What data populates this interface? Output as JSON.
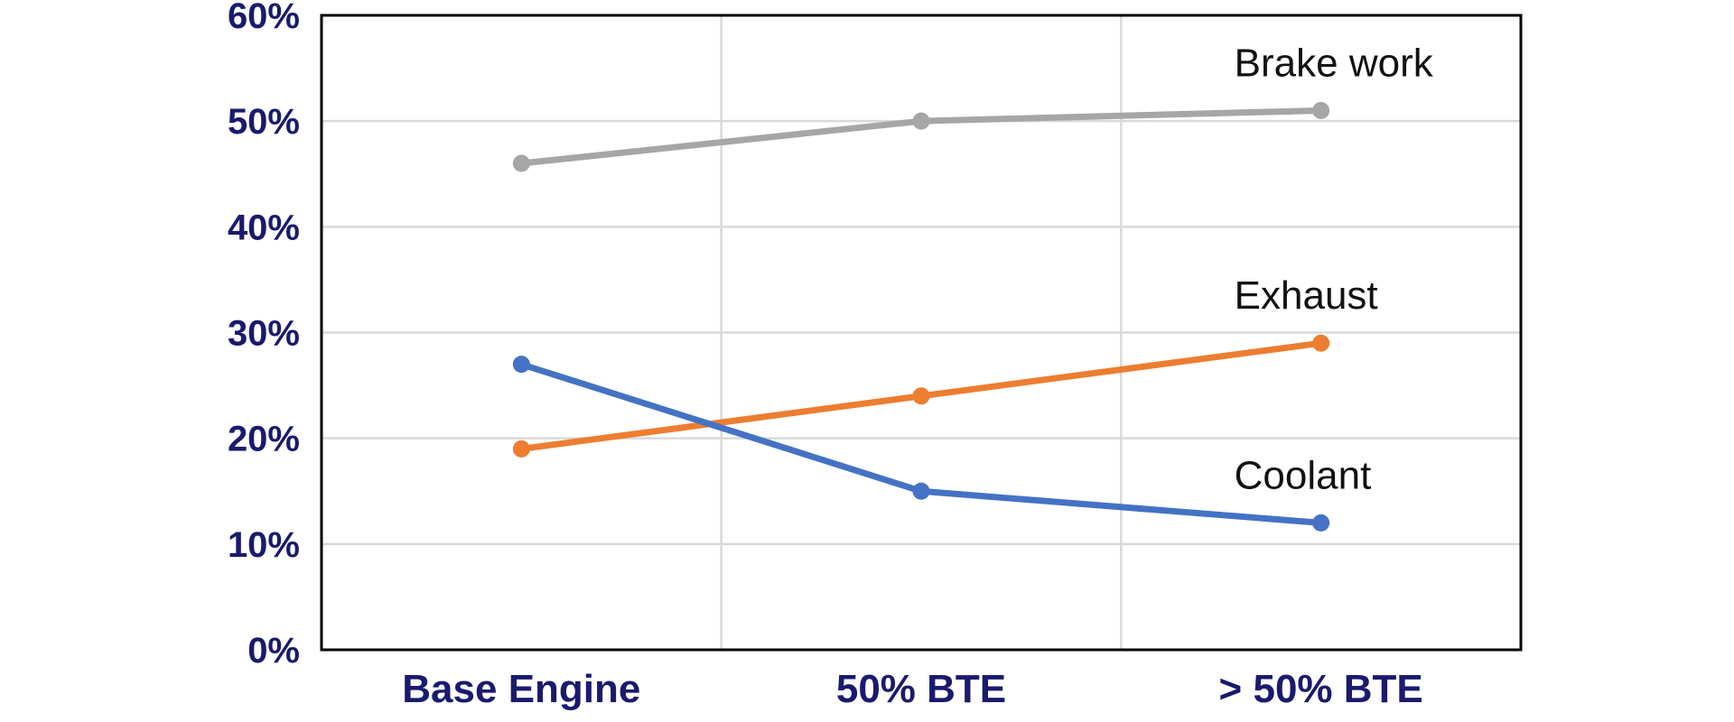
{
  "colors": {
    "axis_text": "#1a1a6e",
    "gridline": "#d9d9d9",
    "frame": "#000000"
  },
  "chart_data": {
    "type": "line",
    "categories": [
      "Base Engine",
      "50% BTE",
      "> 50% BTE"
    ],
    "ylim": [
      0,
      60
    ],
    "yticks": [
      0,
      10,
      20,
      30,
      40,
      50,
      60
    ],
    "ytick_labels": [
      "0%",
      "10%",
      "20%",
      "30%",
      "40%",
      "50%",
      "60%"
    ],
    "grid": true,
    "legend": "inline labels at right",
    "series": [
      {
        "name": "Brake work",
        "color": "#a6a6a6",
        "values": [
          46,
          50,
          51
        ]
      },
      {
        "name": "Exhaust",
        "color": "#ed7d31",
        "values": [
          19,
          24,
          29
        ]
      },
      {
        "name": "Coolant",
        "color": "#4472c4",
        "values": [
          27,
          15,
          12
        ]
      }
    ]
  }
}
